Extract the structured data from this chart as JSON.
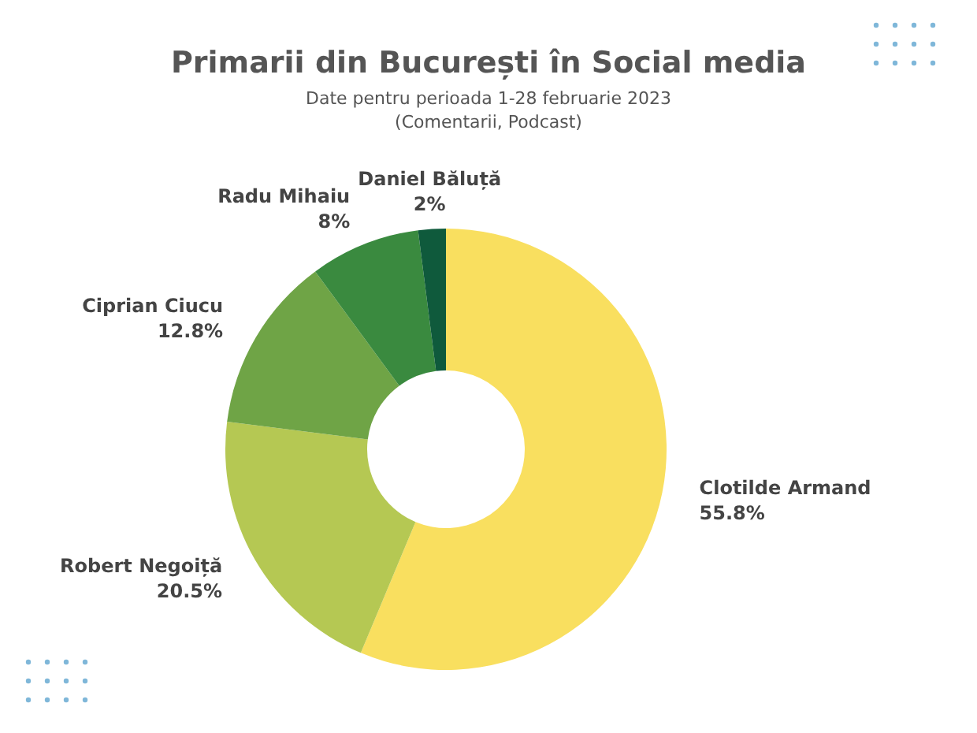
{
  "chart_data": {
    "type": "donut",
    "title": "Primarii din București în Social media",
    "subtitle": "Date pentru perioada 1-28 februarie 2023\n(Comentarii, Podcast)",
    "categories": [
      "Clotilde Armand",
      "Robert Negoiță",
      "Ciprian Ciucu",
      "Radu Mihaiu",
      "Daniel Băluță"
    ],
    "values": [
      55.8,
      20.5,
      12.8,
      8,
      2
    ],
    "value_labels": [
      "55.8%",
      "20.5%",
      "12.8%",
      "8%",
      "2%"
    ],
    "colors": [
      "#f9df5f",
      "#b5c853",
      "#6fa446",
      "#3a8a3f",
      "#0f5a3c"
    ],
    "legend": false
  }
}
